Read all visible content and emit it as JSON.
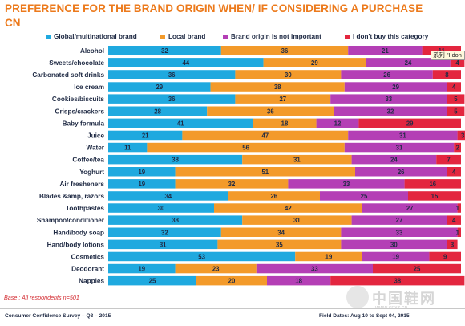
{
  "title": "PREFERENCE FOR THE BRAND ORIGIN WHEN/ IF CONSIDERING A PURCHASE",
  "subtitle": "CN",
  "base_note": "Base : All respondents n=501",
  "footer": {
    "left": "Consumer Confidence Survey – Q3 – 2015",
    "right": "Field Dates: Aug 10 to Sept 04, 2015"
  },
  "tooltip": "系列 \"I don",
  "watermark": {
    "text": "中国鞋网",
    "url": "www.cnxz.cn"
  },
  "colors": {
    "global": "#1fa9df",
    "local": "#f39a2a",
    "not_important": "#b43fb5",
    "dont_buy": "#e3263f",
    "title": "#ec7a1c"
  },
  "chart_data": {
    "type": "bar",
    "orientation": "horizontal",
    "stacked": true,
    "xlim": [
      0,
      100
    ],
    "legend_position": "top",
    "categories": [
      "Alcohol",
      "Sweets/chocolate",
      "Carbonated soft drinks",
      "Ice cream",
      "Cookies/biscuits",
      "Crisps/crackers",
      "Baby formula",
      "Juice",
      "Water",
      "Coffee/tea",
      "Yoghurt",
      "Air fresheners",
      "Blades &amp, razors",
      "Toothpastes",
      "Shampoo/conditioner",
      "Hand/body soap",
      "Hand/body lotions",
      "Cosmetics",
      "Deodorant",
      "Nappies"
    ],
    "series": [
      {
        "name": "Global/multinational brand",
        "values": [
          32,
          44,
          36,
          29,
          36,
          28,
          41,
          21,
          11,
          38,
          19,
          19,
          34,
          30,
          38,
          32,
          31,
          53,
          19,
          25
        ]
      },
      {
        "name": "Local brand",
        "values": [
          36,
          29,
          30,
          38,
          27,
          36,
          18,
          47,
          56,
          31,
          51,
          32,
          26,
          42,
          31,
          34,
          35,
          19,
          23,
          20
        ]
      },
      {
        "name": "Brand origin is not important",
        "values": [
          21,
          24,
          26,
          29,
          33,
          32,
          12,
          31,
          31,
          24,
          26,
          33,
          25,
          27,
          27,
          33,
          30,
          19,
          33,
          18
        ]
      },
      {
        "name": "I don't buy this category",
        "values": [
          11,
          4,
          8,
          4,
          5,
          5,
          29,
          3,
          2,
          7,
          4,
          16,
          15,
          1,
          4,
          1,
          3,
          9,
          25,
          38
        ]
      }
    ]
  }
}
